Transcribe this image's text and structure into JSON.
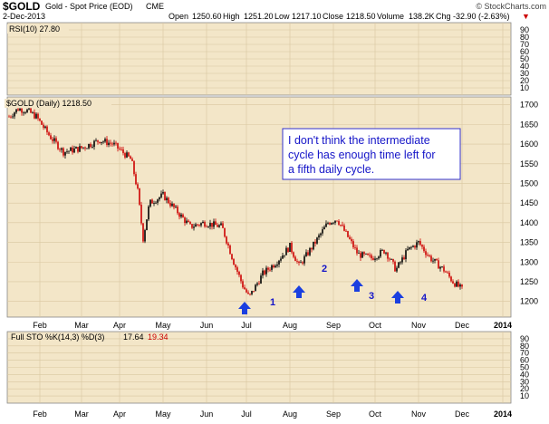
{
  "header": {
    "symbol": "$GOLD",
    "name": "Gold - Spot Price (EOD)",
    "exchange": "CME",
    "date": "2-Dec-2013",
    "open_label": "Open",
    "open": "1250.60",
    "high_label": "High",
    "high": "1251.20",
    "low_label": "Low",
    "low": "1217.10",
    "close_label": "Close",
    "close": "1218.50",
    "volume_label": "Volume",
    "volume": "138.2K",
    "chg_label": "Chg",
    "chg": "-32.90 (-2.63%)",
    "chg_marker": "▼",
    "brand": "© StockCharts.com"
  },
  "colors": {
    "panel_bg": "#f3e6c8",
    "up": "#000000",
    "down": "#cc0000",
    "annotation_blue": "#0000cc",
    "grid": "#d9c7a0"
  },
  "chart_data": [
    {
      "type": "line",
      "panel": "rsi",
      "legend": "RSI(10) 27.80",
      "ylim": [
        0,
        100
      ],
      "yticks": [
        10,
        20,
        30,
        40,
        50,
        60,
        70,
        80,
        90
      ],
      "values": []
    },
    {
      "type": "candlestick",
      "panel": "price",
      "legend": "$GOLD (Daily) 1218.50",
      "ylim": [
        1160,
        1720
      ],
      "yticks": [
        1200,
        1250,
        1300,
        1350,
        1400,
        1450,
        1500,
        1550,
        1600,
        1650,
        1700
      ],
      "xticks": [
        "Feb",
        "Mar",
        "Apr",
        "May",
        "Jun",
        "Jul",
        "Aug",
        "Sep",
        "Oct",
        "Nov",
        "Dec",
        "2014"
      ],
      "series_closes_approx": [
        {
          "month": "Jan",
          "close": 1670
        },
        {
          "month": "Feb",
          "close": 1580
        },
        {
          "month": "Mar",
          "close": 1600
        },
        {
          "month": "Apr",
          "close": 1470
        },
        {
          "month": "May",
          "close": 1390
        },
        {
          "month": "Jun",
          "close": 1235
        },
        {
          "month": "Jul",
          "close": 1320
        },
        {
          "month": "Aug",
          "close": 1395
        },
        {
          "month": "Sep",
          "close": 1330
        },
        {
          "month": "Oct",
          "close": 1325
        },
        {
          "month": "Nov",
          "close": 1250
        },
        {
          "month": "Dec",
          "close": 1218.5
        }
      ],
      "annotations": [
        {
          "label": "1",
          "note": "cycle low arrow"
        },
        {
          "label": "2",
          "note": "cycle low arrow"
        },
        {
          "label": "3",
          "note": "cycle low arrow"
        },
        {
          "label": "4",
          "note": "cycle low arrow"
        }
      ],
      "comment": "I don't think the intermediate cycle has enough time left for a fifth daily cycle."
    },
    {
      "type": "line",
      "panel": "stochastic",
      "legend_prefix": "Full STO %K(14,3) %D(3)",
      "legend_k": "17.64",
      "legend_d": "19.34",
      "ylim": [
        0,
        100
      ],
      "yticks": [
        10,
        20,
        30,
        40,
        50,
        60,
        70,
        80,
        90
      ],
      "xticks": [
        "Feb",
        "Mar",
        "Apr",
        "May",
        "Jun",
        "Jul",
        "Aug",
        "Sep",
        "Oct",
        "Nov",
        "Dec",
        "2014"
      ],
      "values": []
    }
  ]
}
